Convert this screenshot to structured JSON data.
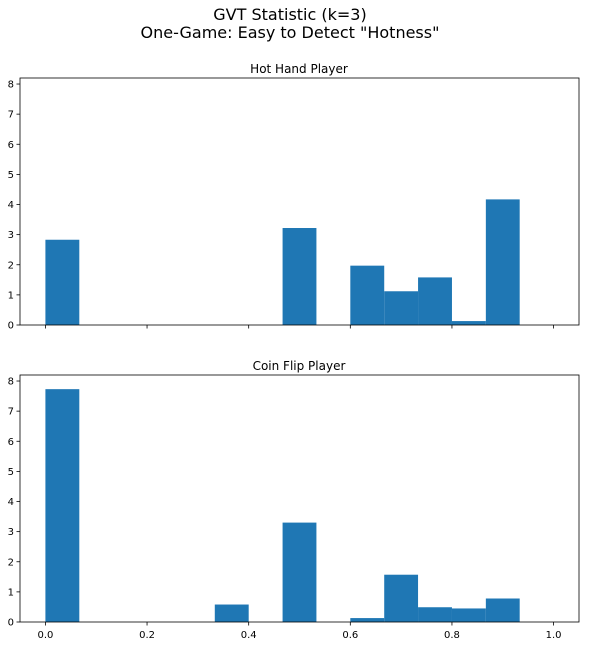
{
  "figure": {
    "title_line1": "GVT Statistic (k=3)",
    "title_line2": "One-Game: Easy to Detect \"Hotness\""
  },
  "colors": {
    "bar": "#1f77b4",
    "axis": "#000000",
    "background": "#ffffff"
  },
  "chart_data": [
    {
      "type": "bar",
      "title": "Hot Hand Player",
      "xlabel": "",
      "ylabel": "",
      "xlim": [
        -0.05,
        1.05
      ],
      "ylim": [
        0,
        8.2
      ],
      "bin_edges": [
        0.0,
        0.0667,
        0.1333,
        0.2,
        0.2667,
        0.3333,
        0.4,
        0.4667,
        0.5333,
        0.6,
        0.6667,
        0.7333,
        0.8,
        0.8667,
        0.9333,
        1.0
      ],
      "values": [
        2.83,
        0,
        0,
        0,
        0,
        0,
        0,
        3.22,
        0,
        1.97,
        1.12,
        1.58,
        0.13,
        4.17,
        null
      ],
      "yticks": [
        "0",
        "1",
        "2",
        "3",
        "4",
        "5",
        "6",
        "7",
        "8"
      ],
      "xticks": [],
      "grid": false
    },
    {
      "type": "bar",
      "title": "Coin Flip Player",
      "xlabel": "",
      "ylabel": "",
      "xlim": [
        -0.05,
        1.05
      ],
      "ylim": [
        0,
        8.2
      ],
      "bin_edges": [
        0.0,
        0.0667,
        0.1333,
        0.2,
        0.2667,
        0.3333,
        0.4,
        0.4667,
        0.5333,
        0.6,
        0.6667,
        0.7333,
        0.8,
        0.8667,
        0.9333,
        1.0
      ],
      "values": [
        7.73,
        0,
        0,
        0,
        0,
        0.58,
        0,
        3.3,
        0,
        0.13,
        1.57,
        0.49,
        0.45,
        0.78,
        null
      ],
      "yticks": [
        "0",
        "1",
        "2",
        "3",
        "4",
        "5",
        "6",
        "7",
        "8"
      ],
      "xticks": [
        "0.0",
        "0.2",
        "0.4",
        "0.6",
        "0.8",
        "1.0"
      ],
      "grid": false
    }
  ]
}
